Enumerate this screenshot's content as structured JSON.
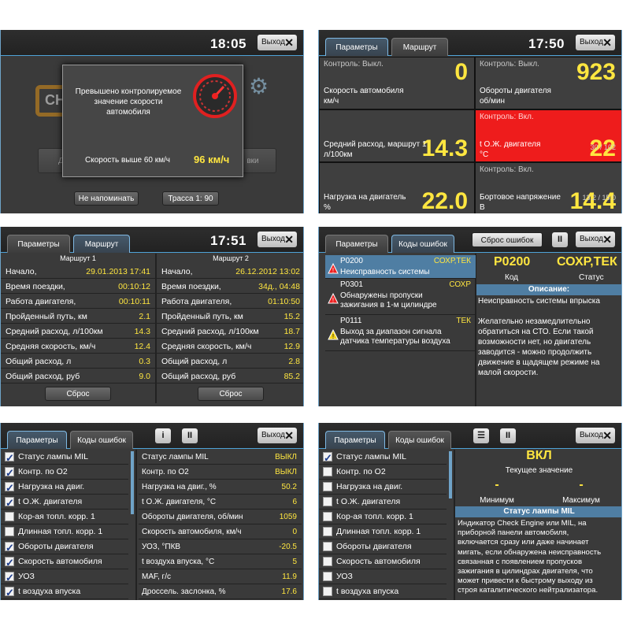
{
  "p1": {
    "time": "18:05",
    "exit": "Выход",
    "dialog": {
      "line1": "Превышено контролируемое",
      "line2": "значение скорости",
      "line3": "автомобиля",
      "cond": "Скорость выше 60 км/ч",
      "value": "96 км/ч",
      "btn_left": "Не напоминать",
      "btn_right": "Трасса 1: 90"
    },
    "bg_left": "Диа",
    "bg_right": "вки",
    "engine_letters": "CH"
  },
  "p2": {
    "tabs": [
      "Параметры",
      "Маршрут"
    ],
    "time": "17:50",
    "exit": "Выход",
    "tiles": [
      {
        "ctl": "Контроль: Выкл.",
        "value": "0",
        "label1": "Скорость автомобиля",
        "label2": "км/ч",
        "range": ""
      },
      {
        "ctl": "Контроль: Выкл.",
        "value": "923",
        "label1": "Обороты двигателя",
        "label2": "об/мин",
        "range": ""
      },
      {
        "ctl": "",
        "value": "14.3",
        "label1": "Средний расход, маршрут 1",
        "label2": "л/100км",
        "range": ""
      },
      {
        "ctl": "Контроль: Вкл.",
        "value": "22",
        "label1": "t О.Ж. двигателя",
        "label2": "°C",
        "range": "30 / 102"
      },
      {
        "ctl": "",
        "value": "22.0",
        "label1": "Нагрузка на двигатель",
        "label2": "%",
        "range": ""
      },
      {
        "ctl": "Контроль: Вкл.",
        "value": "14.4",
        "label1": "Бортовое напряжение",
        "label2": "В",
        "range": "13.2 / 15.0"
      }
    ],
    "alert_color": "#ee1c1c"
  },
  "p3": {
    "tabs": [
      "Параметры",
      "Маршрут"
    ],
    "time": "17:51",
    "exit": "Выход",
    "r1_title": "Маршрут 1",
    "r2_title": "Маршрут 2",
    "reset": "Сброс",
    "rows1": [
      [
        "Начало,",
        "29.01.2013 17:41"
      ],
      [
        "Время поездки,",
        "00:10:12"
      ],
      [
        "Работа двигателя,",
        "00:10:11"
      ],
      [
        "Пройденный путь, км",
        "2.1"
      ],
      [
        "Средний расход, л/100км",
        "14.3"
      ],
      [
        "Средняя скорость, км/ч",
        "12.4"
      ],
      [
        "Общий расход, л",
        "0.3"
      ],
      [
        "Общий расход, руб",
        "9.0"
      ]
    ],
    "rows2": [
      [
        "Начало,",
        "26.12.2012 13:02"
      ],
      [
        "Время поездки,",
        "34д., 04:48"
      ],
      [
        "Работа двигателя,",
        "01:10:50"
      ],
      [
        "Пройденный путь, км",
        "15.2"
      ],
      [
        "Средний расход, л/100км",
        "18.7"
      ],
      [
        "Средняя скорость, км/ч",
        "12.9"
      ],
      [
        "Общий расход, л",
        "2.8"
      ],
      [
        "Общий расход, руб",
        "85.2"
      ]
    ]
  },
  "p4": {
    "tabs": [
      "Параметры",
      "Коды ошибок"
    ],
    "reset": "Сброс ошибок",
    "pause": "II",
    "exit": "Выход",
    "errors": [
      {
        "code": "P0200",
        "status": "СОХР,ТЕК",
        "text1": "Неисправность системы",
        "text2": ""
      },
      {
        "code": "P0301",
        "status": "СОХР",
        "text1": "Обнаружены пропуски",
        "text2": "зажигания в 1-м цилиндре"
      },
      {
        "code": "P0111",
        "status": "ТЕК",
        "text1": "Выход за диапазон сигнала",
        "text2": "датчика температуры воздуха"
      }
    ],
    "detail": {
      "code": "P0200",
      "status": "СОХР,ТЕК",
      "code_label": "Код",
      "status_label": "Статус",
      "desc_title": "Описание:",
      "desc_line": "Неисправность системы впрыска",
      "desc": [
        "Желательно незамедлительно",
        "обратиться на СТО. Если такой",
        "возможности нет, но двигатель",
        "заводится - можно продолжить",
        "движение в щадящем режиме на",
        "малой скорости."
      ]
    }
  },
  "p5": {
    "tabs": [
      "Параметры",
      "Коды ошибок"
    ],
    "info": "i",
    "pause": "II",
    "exit": "Выход",
    "checks": [
      [
        "Статус лампы MIL",
        true
      ],
      [
        "Контр. по O2",
        true
      ],
      [
        "Нагрузка на двиг.",
        true
      ],
      [
        "t О.Ж. двигателя",
        true
      ],
      [
        "Кор-ая топл. корр. 1",
        false
      ],
      [
        "Длинная топл. корр. 1",
        false
      ],
      [
        "Обороты двигателя",
        true
      ],
      [
        "Скорость автомобиля",
        true
      ],
      [
        "УОЗ",
        true
      ],
      [
        "t воздуха впуска",
        true
      ]
    ],
    "params": [
      [
        "Статус лампы MIL",
        "ВЫКЛ"
      ],
      [
        "Контр. по O2",
        "ВЫКЛ"
      ],
      [
        "Нагрузка на двиг., %",
        "50.2"
      ],
      [
        "t О.Ж. двигателя, °C",
        "6"
      ],
      [
        "Обороты двигателя, об/мин",
        "1059"
      ],
      [
        "Скорость автомобиля, км/ч",
        "0"
      ],
      [
        "УОЗ, °ПКВ",
        "-20.5"
      ],
      [
        "t воздуха впуска, °C",
        "5"
      ],
      [
        "MAF, г/с",
        "11.9"
      ],
      [
        "Дроссель. заслонка, %",
        "17.6"
      ]
    ]
  },
  "p6": {
    "tabs": [
      "Параметры",
      "Коды ошибок"
    ],
    "menu": "☰",
    "pause": "II",
    "exit": "Выход",
    "checks": [
      [
        "Статус лампы MIL",
        true
      ],
      [
        "Контр. по O2",
        false
      ],
      [
        "Нагрузка на двиг.",
        false
      ],
      [
        "t О.Ж. двигателя",
        false
      ],
      [
        "Кор-ая топл. корр. 1",
        false
      ],
      [
        "Длинная топл. корр. 1",
        false
      ],
      [
        "Обороты двигателя",
        false
      ],
      [
        "Скорость автомобиля",
        false
      ],
      [
        "УОЗ",
        false
      ],
      [
        "t воздуха впуска",
        false
      ]
    ],
    "detail": {
      "value": "ВКЛ",
      "current_label": "Текущее значение",
      "min": "-",
      "max": "-",
      "min_label": "Минимум",
      "max_label": "Максимум",
      "param_title": "Статус лампы MIL",
      "desc": [
        "Индикатор Check Engine или MIL, на",
        "приборной панели автомобиля,",
        "включается сразу или даже начинает",
        "мигать, если обнаружена неисправность",
        "связанная с появлением пропусков",
        "зажигания в цилиндрах двигателя, что",
        "может привести к быстрому выходу из",
        "строя каталитического нейтрализатора."
      ]
    }
  }
}
